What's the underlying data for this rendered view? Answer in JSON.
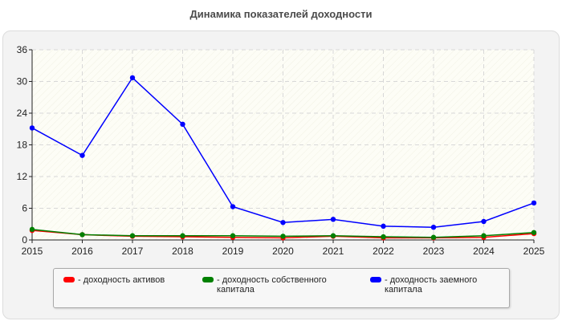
{
  "chart_data": {
    "type": "line",
    "title": "Динамика показателей доходности",
    "categories": [
      "2015",
      "2016",
      "2017",
      "2018",
      "2019",
      "2020",
      "2021",
      "2022",
      "2023",
      "2024",
      "2025"
    ],
    "series": [
      {
        "name": "- доходность активов",
        "color": "#ff0000",
        "values": [
          1.8,
          1.0,
          0.7,
          0.6,
          0.5,
          0.4,
          0.7,
          0.4,
          0.4,
          0.5,
          1.2
        ]
      },
      {
        "name": "- доходность собственного капитала",
        "color": "#008000",
        "values": [
          2.0,
          1.0,
          0.8,
          0.8,
          0.8,
          0.7,
          0.8,
          0.6,
          0.5,
          0.8,
          1.4
        ]
      },
      {
        "name": "- доходность заемного капитала",
        "color": "#0000ff",
        "values": [
          21.2,
          16.0,
          30.7,
          21.9,
          6.3,
          3.3,
          3.9,
          2.6,
          2.4,
          3.5,
          7.0
        ]
      }
    ],
    "yticks": [
      "0",
      "6",
      "12",
      "18",
      "24",
      "30",
      "36"
    ],
    "ylim": [
      0,
      36
    ],
    "grid": true,
    "legend_position": "bottom"
  }
}
